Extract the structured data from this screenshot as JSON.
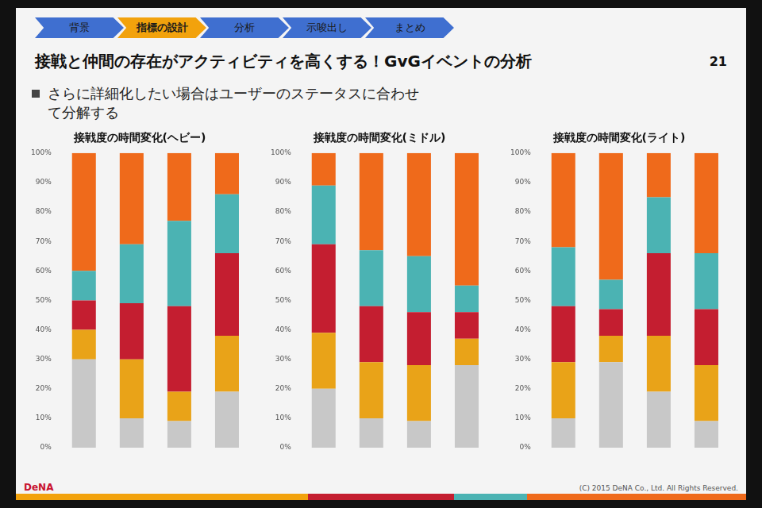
{
  "slide": {
    "nav": [
      "背景",
      "指標の設計",
      "分析",
      "示唆出し",
      "まとめ"
    ],
    "active_step": "指標の設計",
    "title": "接戦と仲間の存在がアクティビティを高くする！GvGイベントの分析",
    "page": "21",
    "bullet": "さらに詳細化したい場合はユーザーのステータスに合わせて分解する",
    "footer_logo": "DeNA",
    "copyright": "(C) 2015 DeNA Co., Ltd. All Rights Reserved."
  },
  "chart_data": [
    {
      "type": "bar",
      "title": "接戦度の時間変化(ヘビー)",
      "stacked": true,
      "grid": false,
      "tick_labels": "y",
      "categories": [
        null,
        null,
        null,
        null
      ],
      "ylim": [
        0,
        100
      ],
      "yticks": [
        {
          "value": 0,
          "label": "0%"
        },
        {
          "value": 10,
          "label": "10%"
        },
        {
          "value": 20,
          "label": "20%"
        },
        {
          "value": 30,
          "label": "30%"
        },
        {
          "value": 40,
          "label": "40%"
        },
        {
          "value": 50,
          "label": "50%"
        },
        {
          "value": 60,
          "label": "60%"
        },
        {
          "value": 70,
          "label": "70%"
        },
        {
          "value": 80,
          "label": "80%"
        },
        {
          "value": 90,
          "label": "90%"
        },
        {
          "value": 100,
          "label": "100%"
        }
      ],
      "series": [
        {
          "color": "#c8c8c8",
          "values": [
            30,
            10,
            9,
            19
          ]
        },
        {
          "color": "#e9a318",
          "values": [
            10,
            20,
            10,
            19
          ]
        },
        {
          "color": "#c41e30",
          "values": [
            10,
            19,
            29,
            28
          ]
        },
        {
          "color": "#4bb3b3",
          "values": [
            10,
            20,
            29,
            20
          ]
        },
        {
          "color": "#ef6a1b",
          "values": [
            40,
            31,
            23,
            14
          ]
        }
      ]
    },
    {
      "type": "bar",
      "title": "接戦度の時間変化(ミドル)",
      "stacked": true,
      "grid": false,
      "tick_labels": "y",
      "categories": [
        null,
        null,
        null,
        null
      ],
      "ylim": [
        0,
        100
      ],
      "yticks": [
        {
          "value": 0,
          "label": "0%"
        },
        {
          "value": 10,
          "label": "10%"
        },
        {
          "value": 20,
          "label": "20%"
        },
        {
          "value": 30,
          "label": "30%"
        },
        {
          "value": 40,
          "label": "40%"
        },
        {
          "value": 50,
          "label": "50%"
        },
        {
          "value": 60,
          "label": "60%"
        },
        {
          "value": 70,
          "label": "70%"
        },
        {
          "value": 80,
          "label": "80%"
        },
        {
          "value": 90,
          "label": "90%"
        },
        {
          "value": 100,
          "label": "100%"
        }
      ],
      "series": [
        {
          "color": "#c8c8c8",
          "values": [
            20,
            10,
            9,
            28
          ]
        },
        {
          "color": "#e9a318",
          "values": [
            19,
            19,
            19,
            9
          ]
        },
        {
          "color": "#c41e30",
          "values": [
            30,
            19,
            18,
            9
          ]
        },
        {
          "color": "#4bb3b3",
          "values": [
            20,
            19,
            19,
            9
          ]
        },
        {
          "color": "#ef6a1b",
          "values": [
            11,
            33,
            35,
            45
          ]
        }
      ]
    },
    {
      "type": "bar",
      "title": "接戦度の時間変化(ライト)",
      "stacked": true,
      "grid": false,
      "tick_labels": "y",
      "categories": [
        null,
        null,
        null,
        null
      ],
      "ylim": [
        0,
        100
      ],
      "yticks": [
        {
          "value": 0,
          "label": "0%"
        },
        {
          "value": 10,
          "label": "10%"
        },
        {
          "value": 20,
          "label": "20%"
        },
        {
          "value": 30,
          "label": "30%"
        },
        {
          "value": 40,
          "label": "40%"
        },
        {
          "value": 50,
          "label": "50%"
        },
        {
          "value": 60,
          "label": "60%"
        },
        {
          "value": 70,
          "label": "70%"
        },
        {
          "value": 80,
          "label": "80%"
        },
        {
          "value": 90,
          "label": "90%"
        },
        {
          "value": 100,
          "label": "100%"
        }
      ],
      "series": [
        {
          "color": "#c8c8c8",
          "values": [
            10,
            29,
            19,
            9
          ]
        },
        {
          "color": "#e9a318",
          "values": [
            19,
            9,
            19,
            19
          ]
        },
        {
          "color": "#c41e30",
          "values": [
            19,
            9,
            28,
            19
          ]
        },
        {
          "color": "#4bb3b3",
          "values": [
            20,
            10,
            19,
            19
          ]
        },
        {
          "color": "#ef6a1b",
          "values": [
            32,
            43,
            15,
            34
          ]
        }
      ]
    }
  ]
}
